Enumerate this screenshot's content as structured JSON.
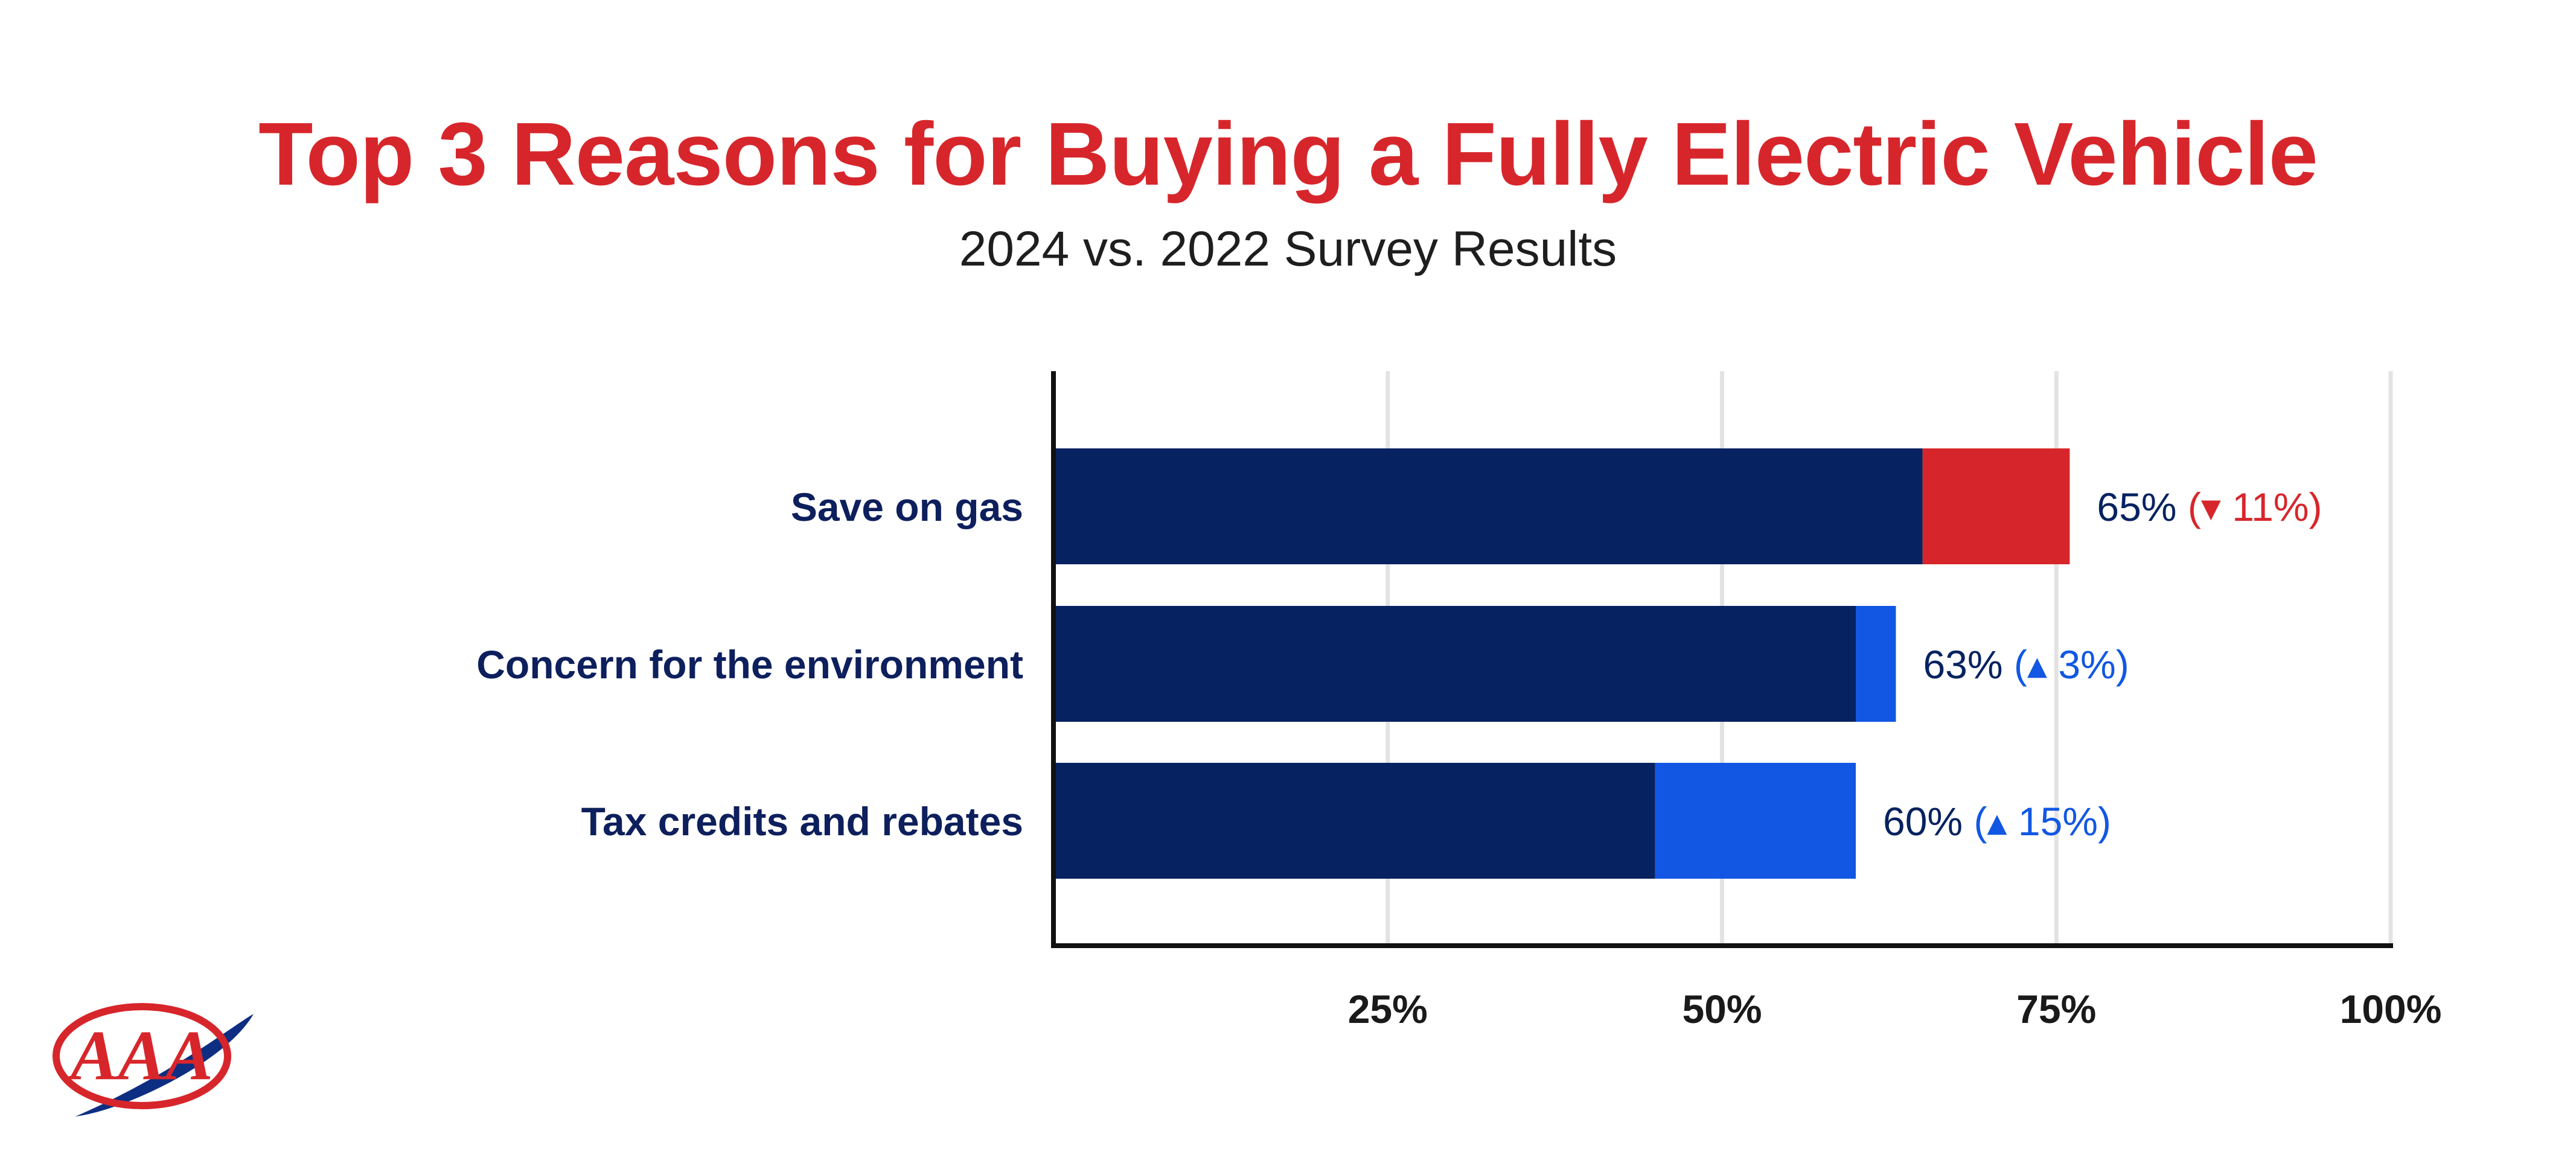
{
  "header": {
    "title": "Top 3 Reasons for Buying a Fully Electric Vehicle",
    "subtitle": "2024 vs. 2022 Survey Results"
  },
  "logo": {
    "text": "AAA",
    "colors": {
      "red": "#d7262b",
      "blue": "#0e2e82"
    }
  },
  "colors": {
    "bar_2024": "#062260",
    "decrease": "#d7262b",
    "increase": "#1157e3",
    "grid": "#e3e3e3",
    "axis": "#111111",
    "category_label": "#0d1f5c",
    "tick_label": "#1a1a1a"
  },
  "chart_data": {
    "type": "bar",
    "orientation": "horizontal",
    "title": "Top 3 Reasons for Buying a Fully Electric Vehicle",
    "subtitle": "2024 vs. 2022 Survey Results",
    "categories": [
      "Save on gas",
      "Concern for the environment",
      "Tax credits and rebates"
    ],
    "series": [
      {
        "name": "2024",
        "values": [
          65,
          63,
          60
        ]
      },
      {
        "name": "2022",
        "values": [
          76,
          60,
          45
        ]
      }
    ],
    "value_labels": [
      "65%",
      "63%",
      "60%"
    ],
    "change_labels": [
      "11%",
      "3%",
      "15%"
    ],
    "change_direction": [
      "down",
      "up",
      "up"
    ],
    "xlim": [
      0,
      100
    ],
    "xticks": [
      25,
      50,
      75,
      100
    ],
    "xtick_labels": [
      "25%",
      "50%",
      "75%",
      "100%"
    ],
    "grid": true
  }
}
